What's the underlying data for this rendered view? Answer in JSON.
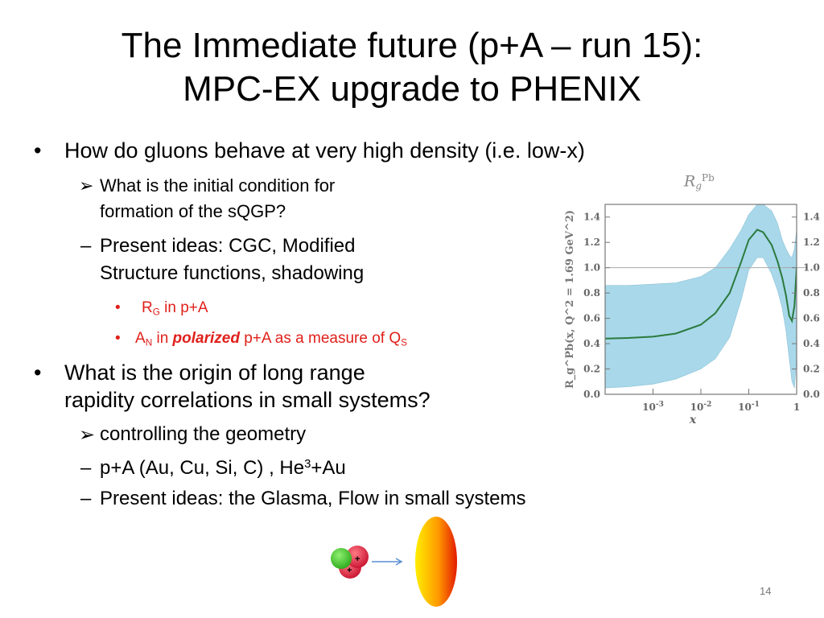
{
  "slide": {
    "title_line1": "The Immediate future (p+A – run 15):",
    "title_line2": "MPC-EX upgrade to PHENIX",
    "bullet1": "How do gluons behave at very high density   (i.e. low-x)",
    "sub1a_line1": "What is the initial condition for",
    "sub1a_line2": "formation of the sQGP?",
    "sub1b_line1": "Present ideas: CGC, Modified",
    "sub1b_line2": "Structure functions, shadowing",
    "rg_main": "R",
    "rg_sub": "G",
    "rg_rest": " in p+A",
    "an_main": "A",
    "an_sub": "N",
    "an_in": " in ",
    "an_polarized": "polarized",
    "an_rest": " p+A as a measure of Q",
    "an_qsub": "S",
    "bullet2_line1": "What is the origin of long range",
    "bullet2_line2": "rapidity correlations in small systems?",
    "sub2a": "controlling the geometry",
    "sub2b_pre": " p+A  (Au, Cu, Si, C) , He",
    "sub2b_sup": "3",
    "sub2b_post": "+Au",
    "sub2c": "Present ideas: the Glasma, Flow in small systems",
    "page_number": "14",
    "arrow_bullet": "➢",
    "dash_bullet": "–",
    "dot_bullet": "•"
  },
  "diagram": {
    "proton_charge_1": "+",
    "proton_charge_2": "+"
  },
  "chart_data": {
    "type": "area",
    "title_main": "R",
    "title_sub": "g",
    "title_sup": "Pb",
    "xlabel": "x",
    "ylabel": "R_g^Pb(x, Q^2 = 1.69 GeV^2)",
    "x_scale": "log",
    "xlim": [
      0.0001,
      1
    ],
    "ylim": [
      0.0,
      1.5
    ],
    "x_ticks": [
      "10^-3",
      "10^-2",
      "10^-1",
      "1"
    ],
    "y_ticks": [
      "0.0",
      "0.2",
      "0.4",
      "0.6",
      "0.8",
      "1.0",
      "1.2",
      "1.4"
    ],
    "reference_line": 1.0,
    "series": [
      {
        "x": [
          0.0001,
          0.0003,
          0.001,
          0.003,
          0.01,
          0.02,
          0.04,
          0.07,
          0.1,
          0.15,
          0.2,
          0.3,
          0.4,
          0.5,
          0.6,
          0.7,
          0.8,
          0.9,
          1.0
        ],
        "central": [
          0.44,
          0.445,
          0.455,
          0.48,
          0.55,
          0.64,
          0.8,
          1.05,
          1.22,
          1.3,
          1.28,
          1.18,
          1.05,
          0.92,
          0.78,
          0.62,
          0.58,
          0.7,
          1.0
        ],
        "upper": [
          0.86,
          0.86,
          0.87,
          0.88,
          0.93,
          1.0,
          1.15,
          1.3,
          1.42,
          1.5,
          1.5,
          1.45,
          1.35,
          1.22,
          1.15,
          1.1,
          1.08,
          1.15,
          1.3
        ],
        "lower": [
          0.05,
          0.06,
          0.08,
          0.12,
          0.2,
          0.28,
          0.45,
          0.75,
          0.98,
          1.08,
          1.08,
          0.95,
          0.82,
          0.68,
          0.5,
          0.28,
          0.1,
          0.05,
          0.3
        ]
      }
    ],
    "colors": {
      "band": "#a8d8ea",
      "line": "#2b7a3d",
      "frame": "#777777",
      "ref_line": "#aaaaaa"
    }
  }
}
